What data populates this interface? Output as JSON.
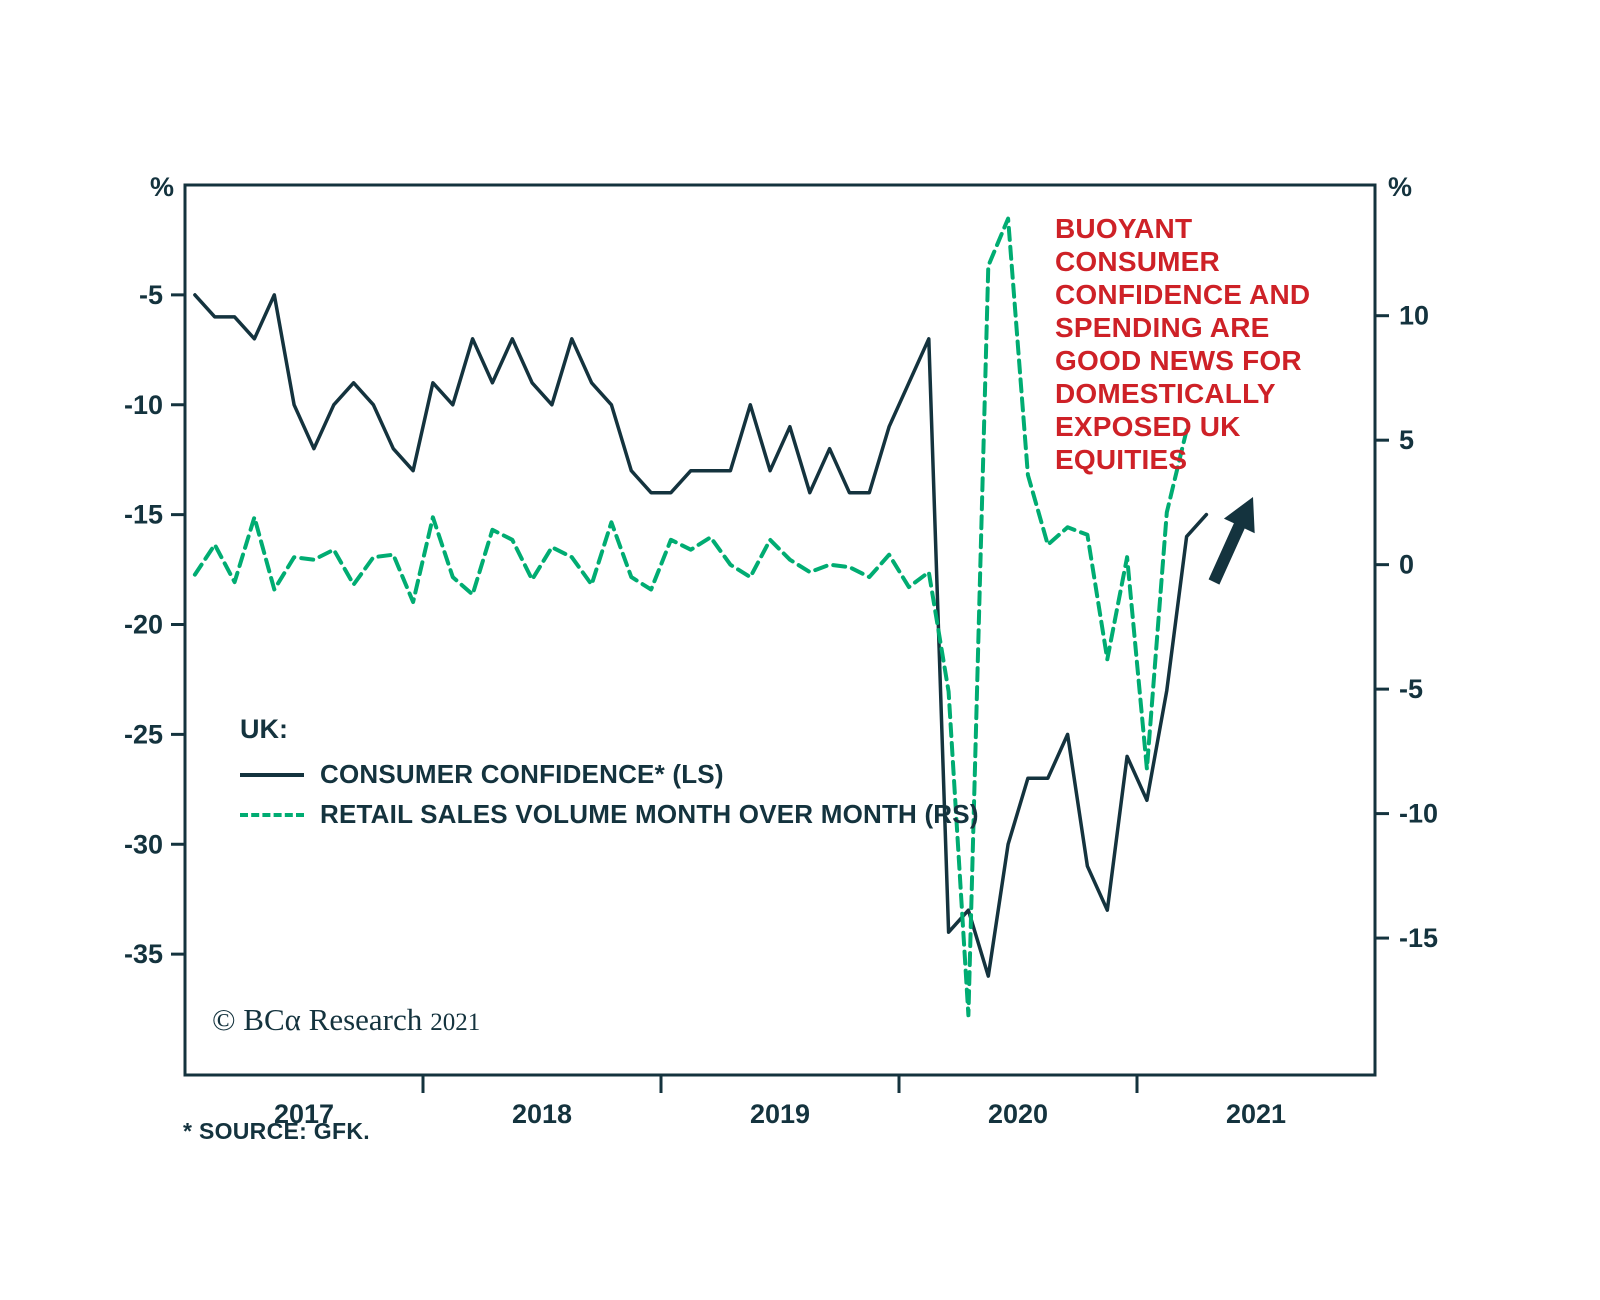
{
  "annotation": {
    "text": "BUOYANT CONSUMER\nCONFIDENCE AND\nSPENDING ARE\nGOOD NEWS FOR\nDOMESTICALLY\nEXPOSED UK EQUITIES",
    "color": "#CE2127"
  },
  "legend": {
    "region_label": "UK:",
    "entries": [
      {
        "label": "CONSUMER CONFIDENCE* (LS)",
        "style": "solid",
        "color": "#14333E"
      },
      {
        "label": "RETAIL SALES VOLUME MONTH OVER MONTH (RS)",
        "style": "dashed",
        "color": "#00AC72"
      }
    ]
  },
  "footer": {
    "copyright": "© BCα Research",
    "year": "2021",
    "source_note": "* SOURCE: GFK."
  },
  "chart_data": {
    "type": "line",
    "title": "",
    "x": [
      "2017-01",
      "2017-02",
      "2017-03",
      "2017-04",
      "2017-05",
      "2017-06",
      "2017-07",
      "2017-08",
      "2017-09",
      "2017-10",
      "2017-11",
      "2017-12",
      "2018-01",
      "2018-02",
      "2018-03",
      "2018-04",
      "2018-05",
      "2018-06",
      "2018-07",
      "2018-08",
      "2018-09",
      "2018-10",
      "2018-11",
      "2018-12",
      "2019-01",
      "2019-02",
      "2019-03",
      "2019-04",
      "2019-05",
      "2019-06",
      "2019-07",
      "2019-08",
      "2019-09",
      "2019-10",
      "2019-11",
      "2019-12",
      "2020-01",
      "2020-02",
      "2020-03",
      "2020-04",
      "2020-05",
      "2020-06",
      "2020-07",
      "2020-08",
      "2020-09",
      "2020-10",
      "2020-11",
      "2020-12",
      "2021-01",
      "2021-02",
      "2021-03",
      "2021-04"
    ],
    "series": [
      {
        "name": "CONSUMER CONFIDENCE* (LS)",
        "axis": "left",
        "style": "solid",
        "color": "#14333E",
        "values": [
          -5,
          -6,
          -6,
          -7,
          -5,
          -10,
          -12,
          -10,
          -9,
          -10,
          -12,
          -13,
          -9,
          -10,
          -7,
          -9,
          -7,
          -9,
          -10,
          -7,
          -9,
          -10,
          -13,
          -14,
          -14,
          -13,
          -13,
          -13,
          -10,
          -13,
          -11,
          -14,
          -12,
          -14,
          -14,
          -11,
          -9,
          -7,
          -34,
          -33,
          -36,
          -30,
          -27,
          -27,
          -25,
          -31,
          -33,
          -26,
          -28,
          -23,
          -16,
          -15
        ]
      },
      {
        "name": "RETAIL SALES VOLUME MONTH OVER MONTH (RS)",
        "axis": "right",
        "style": "dashed",
        "color": "#00AC72",
        "values": [
          -0.4,
          0.8,
          -0.7,
          1.9,
          -1.0,
          0.3,
          0.2,
          0.6,
          -0.8,
          0.3,
          0.4,
          -1.5,
          1.9,
          -0.5,
          -1.2,
          1.4,
          1.0,
          -0.6,
          0.7,
          0.3,
          -0.8,
          1.7,
          -0.5,
          -1.0,
          1.0,
          0.6,
          1.1,
          0.0,
          -0.5,
          1.0,
          0.2,
          -0.3,
          0.0,
          -0.1,
          -0.5,
          0.4,
          -0.9,
          -0.3,
          -5.1,
          -18.1,
          12.0,
          13.9,
          3.6,
          0.8,
          1.5,
          1.2,
          -3.8,
          0.3,
          -8.2,
          2.1,
          5.4,
          null
        ]
      }
    ],
    "left_axis": {
      "unit": "%",
      "ticks": [
        -5,
        -10,
        -15,
        -20,
        -25,
        -30,
        -35
      ],
      "range": [
        -40.5,
        0
      ]
    },
    "right_axis": {
      "unit": "%",
      "ticks": [
        10,
        5,
        0,
        -5,
        -10,
        -15
      ],
      "range": [
        -20.5,
        15.25
      ]
    },
    "x_axis": {
      "start_year": 2017,
      "end_year": 2022,
      "tick_years": [
        2018,
        2019,
        2020,
        2021
      ],
      "year_labels": [
        "2017",
        "2018",
        "2019",
        "2020",
        "2021"
      ]
    },
    "grid": false,
    "legend_position": "inside-left-middle"
  }
}
